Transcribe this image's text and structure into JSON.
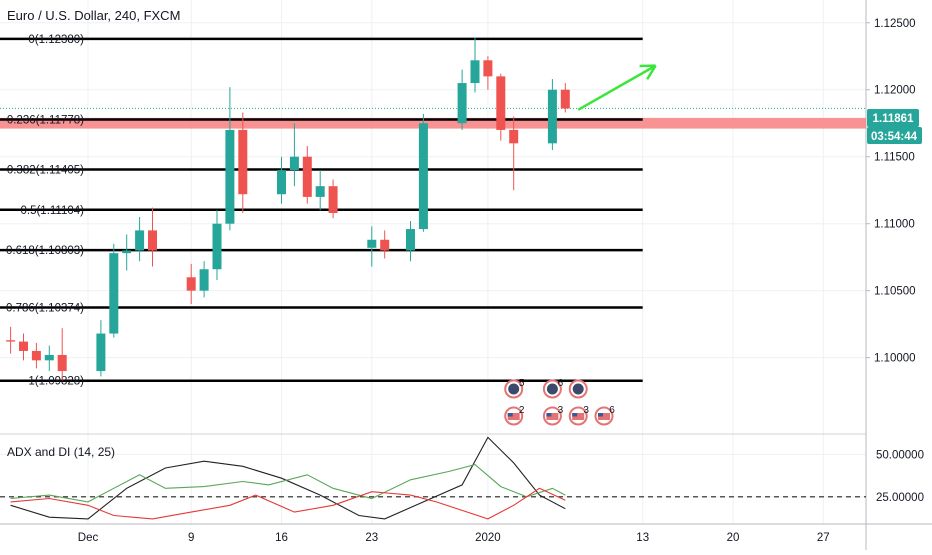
{
  "symbol_title": "Euro / U.S. Dollar, 240, FXCM",
  "indicator_title": "ADX and DI (14, 25)",
  "price_badge": "1.11861",
  "countdown_badge": "03:54:44",
  "colors": {
    "up": "#26a69a",
    "down": "#ef5350",
    "fib_line": "#000000",
    "fib_zone": "#f88080",
    "arrow": "#39e639",
    "badge_bg": "#26a69a",
    "adx": "#222222",
    "di_plus": "#5aa55a",
    "di_minus": "#e53935"
  },
  "chart_data": [
    {
      "type": "candlestick",
      "title": "Euro / U.S. Dollar, 240, FXCM",
      "ylim": [
        1.0943,
        1.1267
      ],
      "y_ticks": [
        "1.12500",
        "1.12000",
        "1.11500",
        "1.11000",
        "1.10500",
        "1.10000"
      ],
      "y_tick_values": [
        1.125,
        1.12,
        1.115,
        1.11,
        1.105,
        1.1
      ],
      "x_ticks": [
        "Dec",
        "9",
        "16",
        "23",
        "2020",
        "13",
        "20",
        "27"
      ],
      "x_tick_dates": [
        "2019-12-01",
        "2019-12-09",
        "2019-12-16",
        "2019-12-23",
        "2020-01-01",
        "2020-01-13",
        "2020-01-20",
        "2020-01-27"
      ],
      "x_range": [
        "2019-11-24",
        "2020-02-02"
      ],
      "ohlc": [
        [
          "2019-11-25",
          1.1013,
          1.1023,
          1.1003,
          1.1012
        ],
        [
          "2019-11-26",
          1.1012,
          1.1018,
          1.0998,
          1.1005
        ],
        [
          "2019-11-27",
          1.1005,
          1.1011,
          1.0992,
          1.0998
        ],
        [
          "2019-11-28",
          1.0998,
          1.1009,
          1.099,
          1.1002
        ],
        [
          "2019-11-29",
          1.1002,
          1.1022,
          1.0983,
          1.099
        ],
        [
          "2019-12-02",
          1.099,
          1.1028,
          1.0986,
          1.1018
        ],
        [
          "2019-12-03",
          1.1018,
          1.1085,
          1.1015,
          1.1078
        ],
        [
          "2019-12-04",
          1.1078,
          1.1092,
          1.1065,
          1.108
        ],
        [
          "2019-12-05",
          1.108,
          1.1105,
          1.1072,
          1.1095
        ],
        [
          "2019-12-06",
          1.1095,
          1.1112,
          1.1068,
          1.108
        ],
        [
          "2019-12-09",
          1.106,
          1.107,
          1.104,
          1.105
        ],
        [
          "2019-12-10",
          1.105,
          1.1072,
          1.1045,
          1.1066
        ],
        [
          "2019-12-11",
          1.1066,
          1.111,
          1.1058,
          1.11
        ],
        [
          "2019-12-12",
          1.11,
          1.1202,
          1.1095,
          1.117
        ],
        [
          "2019-12-13",
          1.117,
          1.1183,
          1.1108,
          1.1122
        ],
        [
          "2019-12-16",
          1.1122,
          1.115,
          1.1115,
          1.114
        ],
        [
          "2019-12-17",
          1.114,
          1.1175,
          1.1128,
          1.115
        ],
        [
          "2019-12-18",
          1.115,
          1.1158,
          1.1115,
          1.112
        ],
        [
          "2019-12-19",
          1.112,
          1.114,
          1.111,
          1.1128
        ],
        [
          "2019-12-20",
          1.1128,
          1.1133,
          1.1104,
          1.1108
        ],
        [
          "2019-12-23",
          1.1082,
          1.1098,
          1.1068,
          1.1088
        ],
        [
          "2019-12-24",
          1.1088,
          1.1095,
          1.1074,
          1.108
        ],
        [
          "2019-12-26",
          1.108,
          1.1102,
          1.1072,
          1.1096
        ],
        [
          "2019-12-27",
          1.1096,
          1.1182,
          1.1094,
          1.1175
        ],
        [
          "2019-12-30",
          1.1175,
          1.1215,
          1.117,
          1.1205
        ],
        [
          "2019-12-31",
          1.1205,
          1.1239,
          1.1198,
          1.1222
        ],
        [
          "2020-01-01",
          1.1222,
          1.1225,
          1.12,
          1.121
        ],
        [
          "2020-01-02",
          1.121,
          1.1212,
          1.1162,
          1.117
        ],
        [
          "2020-01-03",
          1.117,
          1.118,
          1.1125,
          1.116
        ],
        [
          "2020-01-06",
          1.116,
          1.1208,
          1.1155,
          1.12
        ],
        [
          "2020-01-07",
          1.12,
          1.1205,
          1.1183,
          1.1186
        ]
      ],
      "fib_levels": [
        {
          "label": "0(1.12380)",
          "value": 1.1238
        },
        {
          "label": "0.236(1.11778)",
          "value": 1.11778
        },
        {
          "label": "0.382(1.11405)",
          "value": 1.11405
        },
        {
          "label": "0.5(1.11104)",
          "value": 1.11104
        },
        {
          "label": "0.618(1.10803)",
          "value": 1.10803
        },
        {
          "label": "0.786(1.10374)",
          "value": 1.10374
        },
        {
          "label": "1(1.09828)",
          "value": 1.09828
        }
      ],
      "fib_zone": [
        1.1171,
        1.1179
      ],
      "current_price": 1.11861,
      "projection_arrow": {
        "from": [
          "2020-01-08",
          1.1185
        ],
        "to": [
          "2020-01-14",
          1.1218
        ]
      },
      "event_markers": [
        {
          "date": "2020-01-03",
          "row": 1,
          "count": 5,
          "flag": "eu"
        },
        {
          "date": "2020-01-06",
          "row": 1,
          "count": 6,
          "flag": "eu"
        },
        {
          "date": "2020-01-08",
          "row": 1,
          "count": null,
          "flag": "eu"
        },
        {
          "date": "2020-01-03",
          "row": 2,
          "count": 2,
          "flag": "us"
        },
        {
          "date": "2020-01-06",
          "row": 2,
          "count": 3,
          "flag": "us"
        },
        {
          "date": "2020-01-08",
          "row": 2,
          "count": 3,
          "flag": "us"
        },
        {
          "date": "2020-01-10",
          "row": 2,
          "count": 6,
          "flag": "us"
        }
      ]
    },
    {
      "type": "line",
      "title": "ADX and DI (14, 25)",
      "ylim": [
        9,
        62
      ],
      "y_ticks": [
        "50.00000",
        "25.00000"
      ],
      "y_tick_values": [
        50,
        25
      ],
      "threshold": 25,
      "series": [
        {
          "key": "adx",
          "values": [
            [
              "2019-11-25",
              20
            ],
            [
              "2019-11-28",
              13
            ],
            [
              "2019-12-01",
              12
            ],
            [
              "2019-12-04",
              30
            ],
            [
              "2019-12-07",
              42
            ],
            [
              "2019-12-10",
              46
            ],
            [
              "2019-12-13",
              43
            ],
            [
              "2019-12-16",
              36
            ],
            [
              "2019-12-19",
              26
            ],
            [
              "2019-12-22",
              14
            ],
            [
              "2019-12-24",
              12
            ],
            [
              "2019-12-27",
              22
            ],
            [
              "2019-12-30",
              32
            ],
            [
              "2020-01-01",
              60
            ],
            [
              "2020-01-03",
              45
            ],
            [
              "2020-01-05",
              26
            ],
            [
              "2020-01-07",
              18
            ]
          ]
        },
        {
          "key": "di_plus",
          "values": [
            [
              "2019-11-25",
              24
            ],
            [
              "2019-11-28",
              26
            ],
            [
              "2019-12-01",
              22
            ],
            [
              "2019-12-03",
              30
            ],
            [
              "2019-12-05",
              38
            ],
            [
              "2019-12-07",
              30
            ],
            [
              "2019-12-10",
              31
            ],
            [
              "2019-12-13",
              34
            ],
            [
              "2019-12-15",
              32
            ],
            [
              "2019-12-18",
              38
            ],
            [
              "2019-12-20",
              30
            ],
            [
              "2019-12-23",
              24
            ],
            [
              "2019-12-26",
              35
            ],
            [
              "2019-12-29",
              40
            ],
            [
              "2019-12-31",
              44
            ],
            [
              "2020-01-02",
              31
            ],
            [
              "2020-01-04",
              25
            ],
            [
              "2020-01-06",
              30
            ],
            [
              "2020-01-07",
              26
            ]
          ]
        },
        {
          "key": "di_minus",
          "values": [
            [
              "2019-11-25",
              22
            ],
            [
              "2019-11-28",
              24
            ],
            [
              "2019-12-01",
              20
            ],
            [
              "2019-12-03",
              14
            ],
            [
              "2019-12-06",
              12
            ],
            [
              "2019-12-09",
              16
            ],
            [
              "2019-12-12",
              20
            ],
            [
              "2019-12-14",
              26
            ],
            [
              "2019-12-17",
              16
            ],
            [
              "2019-12-20",
              20
            ],
            [
              "2019-12-23",
              28
            ],
            [
              "2019-12-26",
              26
            ],
            [
              "2019-12-28",
              22
            ],
            [
              "2019-12-30",
              17
            ],
            [
              "2020-01-01",
              12
            ],
            [
              "2020-01-03",
              20
            ],
            [
              "2020-01-05",
              30
            ],
            [
              "2020-01-07",
              23
            ]
          ]
        }
      ]
    }
  ]
}
